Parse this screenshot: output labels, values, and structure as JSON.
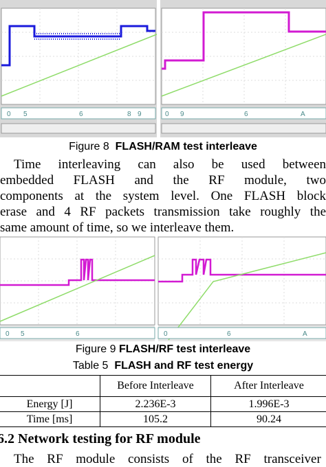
{
  "figure8": {
    "label": "Figure 8",
    "title": "FLASH/RAM test interleave",
    "scope_left_codes": [
      "0",
      "5",
      "6",
      "8",
      "9"
    ],
    "scope_right_codes": [
      "0",
      "9",
      "6",
      "A"
    ]
  },
  "paragraph": {
    "lines": [
      "Time interleaving can also be used between",
      "embedded FLASH and the RF module, two",
      "components at the system level. One FLASH block",
      "erase and 4 RF packets transmission take roughly the",
      "same amount of time, so we interleave them."
    ]
  },
  "figure9": {
    "label": "Figure 9",
    "title": "FLASH/RF test interleave",
    "scope_left_codes": [
      "0",
      "5",
      "6"
    ],
    "scope_right_codes": [
      "0",
      "6",
      "A"
    ]
  },
  "table": {
    "label": "Table 5",
    "title": "FLASH and RF test energy",
    "header": [
      "",
      "Before Interleave",
      "After Interleave"
    ],
    "rows": [
      [
        "Energy [J]",
        "2.236E-3",
        "1.996E-3"
      ],
      [
        "Time [ms]",
        "105.2",
        "90.24"
      ]
    ]
  },
  "section": {
    "number": "6.2",
    "title": "Network testing for RF module"
  },
  "next_line": "The RF module consists of the RF transceiver"
}
